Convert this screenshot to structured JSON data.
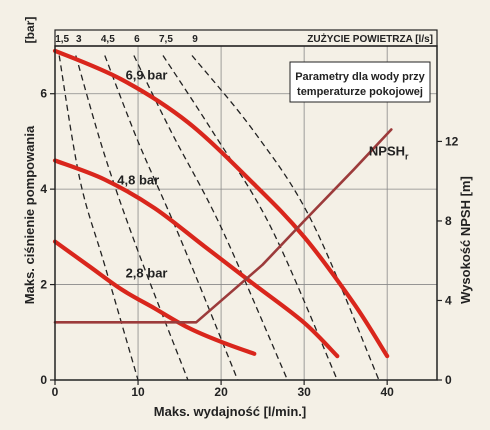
{
  "chart_data": {
    "type": "line",
    "title": "",
    "xlabel": "Maks. wydajność [l/min.]",
    "ylabel": "Maks. ciśnienie pompowania",
    "y_unit_label": "[bar]",
    "y2label": "Wysokość NPSH [m]",
    "top_axis_label": "ZUŻYCIE POWIETRZA [l/s]",
    "legend_box": [
      "Parametry dla wody przy",
      "temperaturze pokojowej"
    ],
    "xlim": [
      0,
      46
    ],
    "ylim": [
      0,
      7
    ],
    "y2lim": [
      0,
      16.8
    ],
    "x_ticks": [
      0,
      10,
      20,
      30,
      40
    ],
    "y_ticks": [
      0,
      2,
      4,
      6
    ],
    "y2_ticks": [
      0,
      4,
      8,
      12
    ],
    "top_ticks": [
      "1,5",
      "3",
      "4,5",
      "6",
      "7,5",
      "9"
    ],
    "grid": true,
    "colors": {
      "pressure": "#d9261c",
      "npsh": "#9c3b3b",
      "air": "#222222",
      "grid": "#888888"
    },
    "series": [
      {
        "name": "6,9 bar",
        "kind": "pressure",
        "x": [
          0,
          8,
          16,
          24,
          30,
          36,
          40
        ],
        "y": [
          6.9,
          6.3,
          5.4,
          4.1,
          3.0,
          1.6,
          0.5
        ]
      },
      {
        "name": "4,8 bar",
        "kind": "pressure",
        "x": [
          0,
          6,
          12,
          18,
          24,
          30,
          34
        ],
        "y": [
          4.6,
          4.2,
          3.6,
          2.8,
          2.0,
          1.2,
          0.5
        ]
      },
      {
        "name": "2,8 bar",
        "kind": "pressure",
        "x": [
          0,
          4,
          8,
          12,
          16,
          20,
          24
        ],
        "y": [
          2.9,
          2.4,
          1.9,
          1.5,
          1.1,
          0.8,
          0.55
        ]
      },
      {
        "name": "NPSHr",
        "kind": "npsh",
        "axis": "right",
        "x": [
          0,
          17,
          25,
          30,
          36,
          40.5
        ],
        "y": [
          2.9,
          2.9,
          5.8,
          8.0,
          10.6,
          12.6
        ]
      }
    ],
    "air_lines": [
      {
        "x": [
          0.5,
          3,
          6,
          10
        ],
        "y": [
          6.8,
          4.2,
          2.4,
          0
        ]
      },
      {
        "x": [
          2.5,
          6,
          10,
          16
        ],
        "y": [
          6.8,
          4.7,
          2.7,
          0
        ]
      },
      {
        "x": [
          6,
          10,
          15,
          22
        ],
        "y": [
          6.8,
          5.0,
          3.0,
          0
        ]
      },
      {
        "x": [
          9.5,
          14,
          20,
          28
        ],
        "y": [
          6.8,
          5.2,
          3.2,
          0
        ]
      },
      {
        "x": [
          13,
          19,
          26,
          34
        ],
        "y": [
          6.8,
          5.2,
          3.2,
          0
        ]
      },
      {
        "x": [
          16.5,
          24,
          31,
          39
        ],
        "y": [
          6.8,
          5.2,
          3.3,
          0
        ]
      }
    ],
    "annotations": [
      {
        "text": "6,9 bar",
        "x": 8.5,
        "y": 6.3
      },
      {
        "text": "4,8 bar",
        "x": 7.5,
        "y": 4.1
      },
      {
        "text": "2,8 bar",
        "x": 8.5,
        "y": 2.15
      },
      {
        "text": "NPSH",
        "sub": "r",
        "x": 37.8,
        "y": 4.7
      }
    ]
  }
}
